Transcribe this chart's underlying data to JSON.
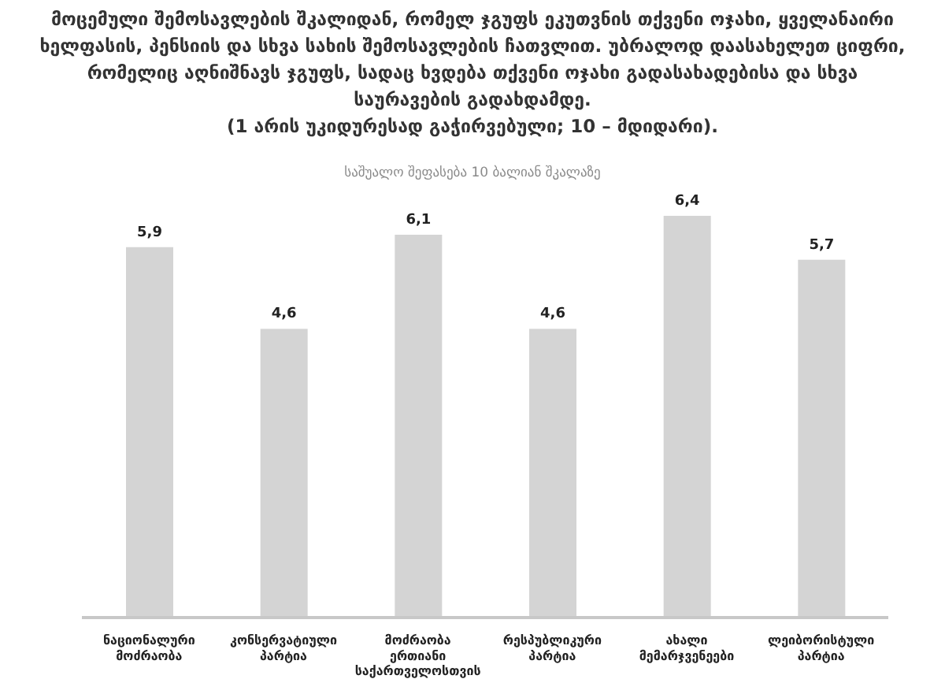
{
  "chart_data": {
    "type": "bar",
    "title": "მოცემული შემოსავლების შკალიდან, რომელ ჯგუფს ეკუთვნის თქვენი ოჯახი, ყველანაირი ხელფასის, პენსიის და სხვა სახის შემოსავლების ჩათვლით. უბრალოდ დაასახელეთ ციფრი, რომელიც აღნიშნავს ჯგუფს, სადაც ხვდება თქვენი ოჯახი გადასახადებისა და სხვა საურავების გადახდამდე.\n(1 არის უკიდურესად გაჭირვებული; 10 – მდიდარი).",
    "subtitle": "საშუალო შეფასება 10 ბალიან შკალაზე",
    "categories": [
      "ნაციონალური მოძრაობა",
      "კონსერვატიული პარტია",
      "მოძრაობა ერთიანი საქართველოსთვის",
      "რესპუბლიკური პარტია",
      "ახალი მემარჯვენეები",
      "ლეიბორისტული პარტია"
    ],
    "values": [
      5.9,
      4.6,
      6.1,
      4.6,
      6.4,
      5.7
    ],
    "value_labels": [
      "5,9",
      "4,6",
      "6,1",
      "4,6",
      "6,4",
      "5,7"
    ],
    "color": "#d4d4d4"
  }
}
